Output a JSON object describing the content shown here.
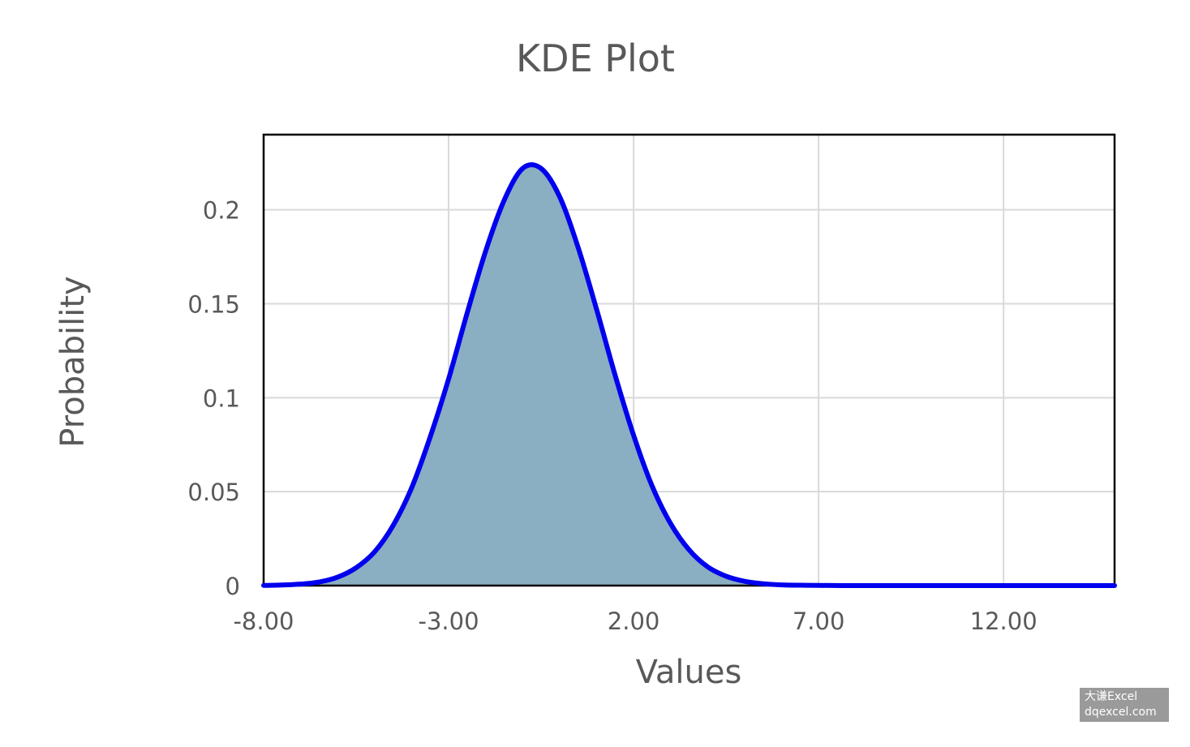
{
  "chart_data": {
    "type": "area",
    "title": "KDE Plot",
    "xlabel": "Values",
    "ylabel": "Probability",
    "xlim": [
      -8,
      15
    ],
    "ylim": [
      0,
      0.24
    ],
    "x_ticks": [
      -8,
      -3,
      2,
      7,
      12
    ],
    "x_tick_labels": [
      "-8.00",
      "-3.00",
      "2.00",
      "7.00",
      "12.00"
    ],
    "y_ticks": [
      0,
      0.05,
      0.1,
      0.15,
      0.2
    ],
    "y_tick_labels": [
      "0",
      "0.05",
      "0.1",
      "0.15",
      "0.2"
    ],
    "grid": true,
    "legend": "none",
    "series": [
      {
        "x": [
          -8,
          -7.5,
          -7,
          -6.5,
          -6,
          -5.5,
          -5,
          -4.5,
          -4,
          -3.5,
          -3,
          -2.5,
          -2,
          -1.5,
          -1,
          -0.5,
          0,
          0.5,
          1,
          1.5,
          2,
          2.5,
          3,
          3.5,
          4,
          4.5,
          5,
          5.5,
          6,
          6.5,
          7,
          8,
          9,
          10,
          11,
          12,
          13,
          14,
          15
        ],
        "y": [
          0.0001,
          0.0003,
          0.0008,
          0.0019,
          0.0045,
          0.0095,
          0.018,
          0.032,
          0.052,
          0.079,
          0.11,
          0.145,
          0.178,
          0.205,
          0.222,
          0.222,
          0.207,
          0.18,
          0.147,
          0.112,
          0.08,
          0.053,
          0.033,
          0.019,
          0.01,
          0.005,
          0.0023,
          0.001,
          0.0004,
          0.0002,
          0.0001,
          0,
          0,
          0,
          0,
          0,
          0,
          0,
          0
        ]
      }
    ],
    "colors": {
      "line": "#0000ee",
      "fill": "#8aaec2",
      "grid": "#d9d9d9",
      "frame": "#000000"
    }
  },
  "watermark": {
    "line1": "大谦Excel",
    "line2": "dqexcel.com"
  }
}
